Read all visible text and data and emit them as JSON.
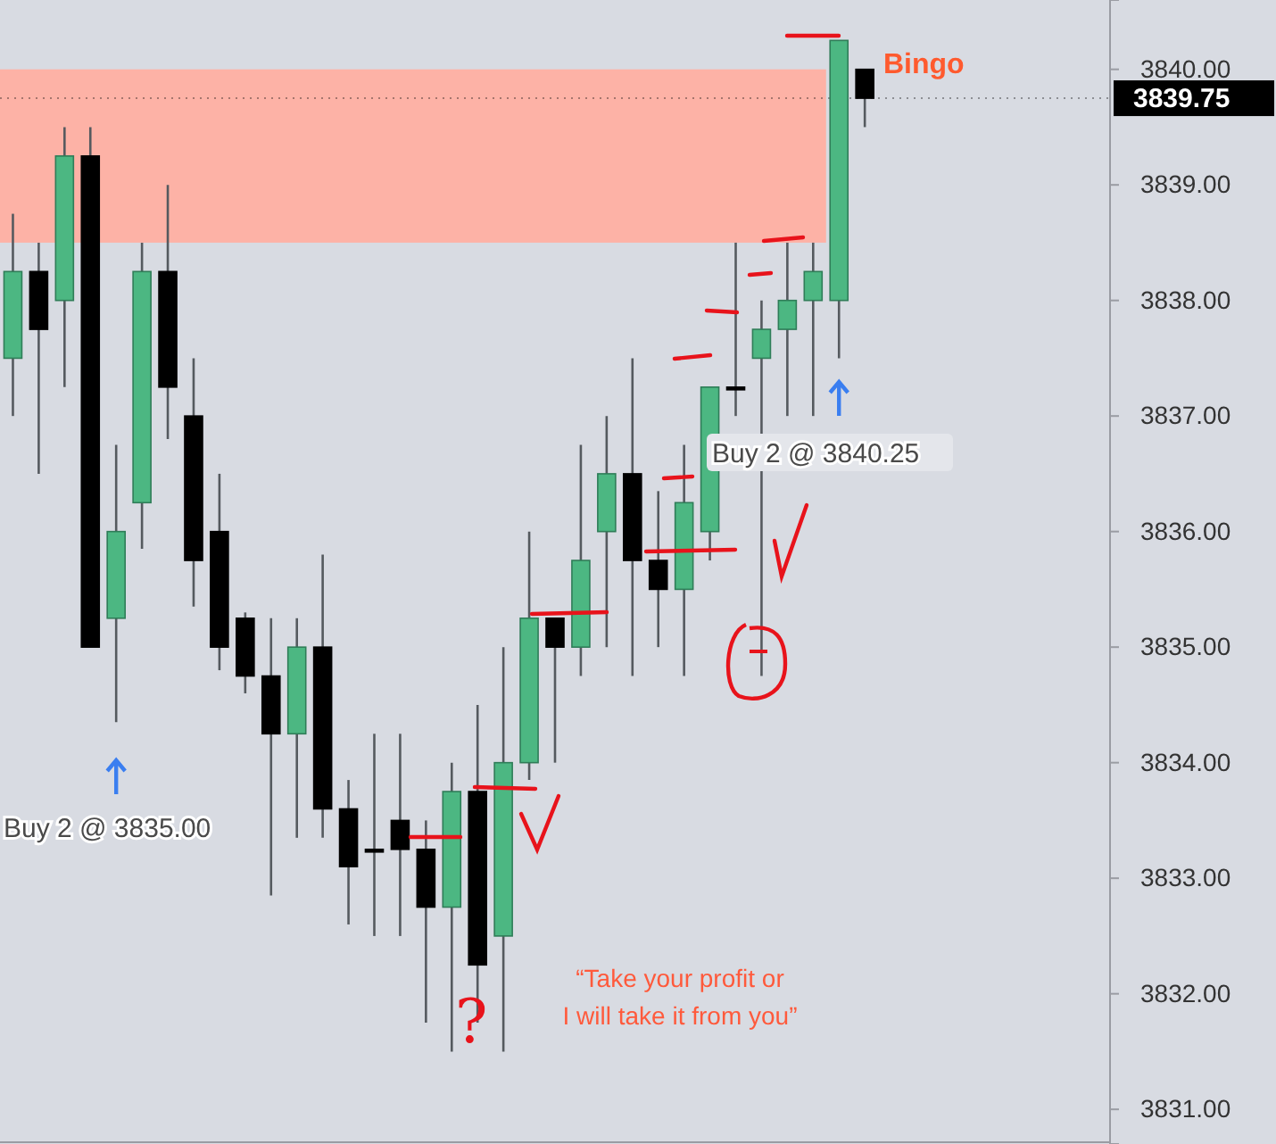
{
  "chart_data": {
    "type": "candlestick",
    "categories": [
      null,
      null,
      null,
      null,
      null,
      null,
      null,
      null,
      null,
      null,
      null,
      null,
      null,
      null,
      null,
      null,
      null,
      null,
      null,
      null,
      null,
      null,
      null,
      null,
      null,
      null,
      null,
      null,
      null,
      null,
      null,
      null,
      null,
      null,
      null,
      null,
      null,
      null,
      null,
      null,
      null,
      null,
      null
    ],
    "ohlc": [
      [
        3837.5,
        3838.75,
        3837.0,
        3838.25
      ],
      [
        3838.25,
        3838.5,
        3836.5,
        3837.75
      ],
      [
        3838.0,
        3839.5,
        3837.25,
        3839.25
      ],
      [
        3839.25,
        3839.5,
        3835.0,
        3835.0
      ],
      [
        3835.25,
        3836.75,
        3834.35,
        3836.0
      ],
      [
        3836.25,
        3838.5,
        3835.85,
        3838.25
      ],
      [
        3838.25,
        3839.0,
        3836.8,
        3837.25
      ],
      [
        3837.0,
        3837.5,
        3835.35,
        3835.75
      ],
      [
        3836.0,
        3836.5,
        3834.8,
        3835.0
      ],
      [
        3835.25,
        3835.3,
        3834.6,
        3834.75
      ],
      [
        3834.75,
        3835.25,
        3832.85,
        3834.25
      ],
      [
        3834.25,
        3835.25,
        3833.35,
        3835.0
      ],
      [
        3835.0,
        3835.8,
        3833.35,
        3833.6
      ],
      [
        3833.6,
        3833.85,
        3832.6,
        3833.1
      ],
      [
        3833.25,
        3834.25,
        3832.5,
        3833.25
      ],
      [
        3833.5,
        3834.25,
        3832.5,
        3833.25
      ],
      [
        3833.25,
        3833.5,
        3831.75,
        3832.75
      ],
      [
        3832.75,
        3834.0,
        3831.5,
        3833.75
      ],
      [
        3833.75,
        3834.5,
        3831.75,
        3832.25
      ],
      [
        3832.5,
        3835.0,
        3831.5,
        3834.0
      ],
      [
        3834.0,
        3836.0,
        3833.85,
        3835.25
      ],
      [
        3835.25,
        3835.25,
        3834.0,
        3835.0
      ],
      [
        3835.0,
        3836.75,
        3834.75,
        3835.75
      ],
      [
        3836.0,
        3837.0,
        3835.0,
        3836.5
      ],
      [
        3836.5,
        3837.5,
        3834.75,
        3835.75
      ],
      [
        3835.75,
        3836.35,
        3835.0,
        3835.5
      ],
      [
        3835.5,
        3836.75,
        3834.75,
        3836.25
      ],
      [
        3836.0,
        3837.25,
        3835.75,
        3837.25
      ],
      [
        3837.25,
        3838.5,
        3837.0,
        3837.25
      ],
      [
        3837.5,
        3838.0,
        3834.75,
        3837.75
      ],
      [
        3837.75,
        3838.5,
        3837.0,
        3838.0
      ],
      [
        3838.0,
        3838.5,
        3837.0,
        3838.25
      ],
      [
        3838.0,
        3840.25,
        3837.5,
        3840.25
      ],
      [
        3840.0,
        3840.0,
        3839.5,
        3839.75
      ],
      null,
      null,
      null,
      null,
      null,
      null,
      null,
      null,
      null
    ],
    "colors": [
      "#4cb782",
      "#000000",
      "#4cb782",
      "#000000",
      "#4cb782",
      "#4cb782",
      "#000000",
      "#000000",
      "#000000",
      "#000000",
      "#000000",
      "#4cb782",
      "#000000",
      "#000000",
      "#000000",
      "#000000",
      "#000000",
      "#4cb782",
      "#000000",
      "#4cb782",
      "#4cb782",
      "#000000",
      "#4cb782",
      "#4cb782",
      "#000000",
      "#000000",
      "#4cb782",
      "#4cb782",
      "#000000",
      "#4cb782",
      "#4cb782",
      "#4cb782",
      "#4cb782",
      "#000000",
      null,
      null,
      null,
      null,
      null,
      null,
      null,
      null,
      null
    ],
    "ylim": [
      3830.7,
      3840.6
    ],
    "yticks": [
      {
        "value": 3831,
        "label": "3831.00"
      },
      {
        "value": 3832,
        "label": "3832.00"
      },
      {
        "value": 3833,
        "label": "3833.00"
      },
      {
        "value": 3834,
        "label": "3834.00"
      },
      {
        "value": 3835,
        "label": "3835.00"
      },
      {
        "value": 3836,
        "label": "3836.00"
      },
      {
        "value": 3837,
        "label": "3837.00"
      },
      {
        "value": 3838,
        "label": "3838.00"
      },
      {
        "value": 3839,
        "label": "3839.00"
      },
      {
        "value": 3840,
        "label": "3840.00"
      }
    ],
    "bands": [
      {
        "axis": "y",
        "from": 3838.5,
        "to": 3840.0,
        "color": "#fdb2a6"
      }
    ],
    "ref_lines": [
      {
        "axis": "y",
        "value": 3839.75,
        "label": "3839.75",
        "color": "#000000"
      }
    ],
    "annotations": [
      "Buy 2 @ 3835.00",
      "Buy 2 @ 3840.25",
      "Bingo",
      "“Take your profit or\nI will take it from you”",
      "?"
    ],
    "grid": false
  }
}
